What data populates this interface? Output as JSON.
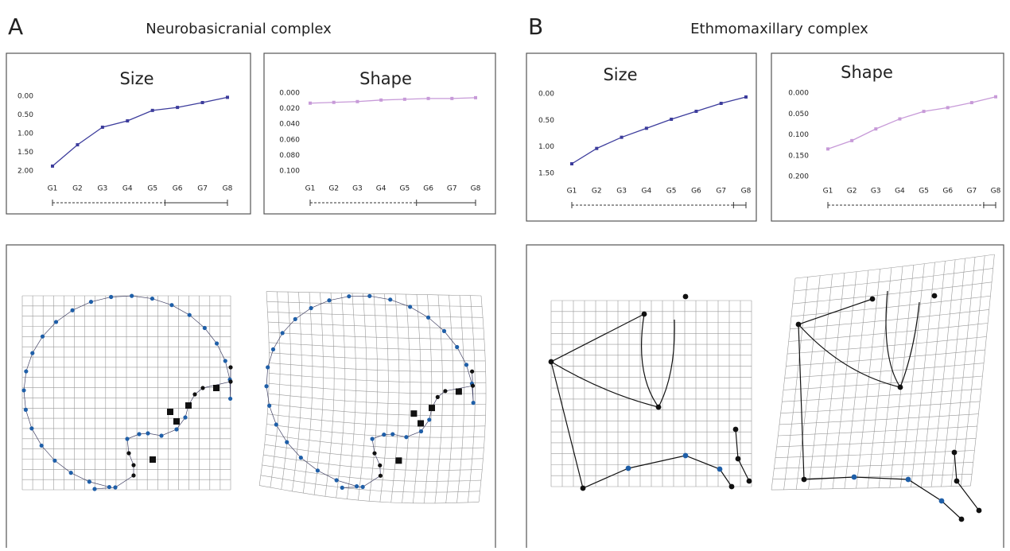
{
  "panels": [
    {
      "letter": "A",
      "title": "Neurobasicranial complex"
    },
    {
      "letter": "B",
      "title": "Ethmomaxillary complex"
    }
  ],
  "chart_data": [
    {
      "type": "line",
      "title": "Size",
      "categories": [
        "G1",
        "G2",
        "G3",
        "G4",
        "G5",
        "G6",
        "G7",
        "G8"
      ],
      "series": [
        {
          "color": "#3c3c9c",
          "values": [
            1.87,
            1.3,
            0.83,
            0.66,
            0.38,
            0.3,
            0.17,
            0.03
          ]
        }
      ],
      "ylim": [
        2,
        0
      ],
      "yticks": [
        {
          "value": 0,
          "label": "0.00"
        },
        {
          "value": 0.5,
          "label": "0.50"
        },
        {
          "value": 1,
          "label": "1.00"
        },
        {
          "value": 1.5,
          "label": "1.50"
        },
        {
          "value": 2,
          "label": "2.00"
        }
      ]
    },
    {
      "type": "line",
      "title": "Shape",
      "categories": [
        "G1",
        "G2",
        "G3",
        "G4",
        "G5",
        "G6",
        "G7",
        "G8"
      ],
      "series": [
        {
          "color": "#c79ad8",
          "values": [
            0.013,
            0.012,
            0.011,
            0.009,
            0.008,
            0.007,
            0.007,
            0.006
          ]
        }
      ],
      "ylim": [
        0.1,
        0
      ],
      "yticks": [
        {
          "value": 0,
          "label": "0.000"
        },
        {
          "value": 0.02,
          "label": "0.020"
        },
        {
          "value": 0.04,
          "label": "0.040"
        },
        {
          "value": 0.06,
          "label": "0.060"
        },
        {
          "value": 0.08,
          "label": "0.080"
        },
        {
          "value": 0.1,
          "label": "0.100"
        }
      ]
    },
    {
      "type": "line",
      "title": "Size",
      "categories": [
        "G1",
        "G2",
        "G3",
        "G4",
        "G5",
        "G6",
        "G7",
        "G8"
      ],
      "series": [
        {
          "color": "#3c3c9c",
          "values": [
            1.32,
            1.03,
            0.82,
            0.65,
            0.48,
            0.33,
            0.18,
            0.06
          ]
        }
      ],
      "ylim": [
        1.5,
        0
      ],
      "yticks": [
        {
          "value": 0,
          "label": "0.00"
        },
        {
          "value": 0.5,
          "label": "0.50"
        },
        {
          "value": 1,
          "label": "1.00"
        },
        {
          "value": 1.5,
          "label": "1.50"
        }
      ]
    },
    {
      "type": "line",
      "title": "Shape",
      "categories": [
        "G1",
        "G2",
        "G3",
        "G4",
        "G5",
        "G6",
        "G7",
        "G8"
      ],
      "series": [
        {
          "color": "#c79ad8",
          "values": [
            0.134,
            0.114,
            0.086,
            0.062,
            0.044,
            0.035,
            0.023,
            0.009
          ]
        }
      ],
      "ylim": [
        0.2,
        0
      ],
      "yticks": [
        {
          "value": 0,
          "label": "0.000"
        },
        {
          "value": 0.05,
          "label": "0.050"
        },
        {
          "value": 0.1,
          "label": "0.100"
        },
        {
          "value": 0.15,
          "label": "0.150"
        },
        {
          "value": 0.2,
          "label": "0.200"
        }
      ]
    }
  ]
}
